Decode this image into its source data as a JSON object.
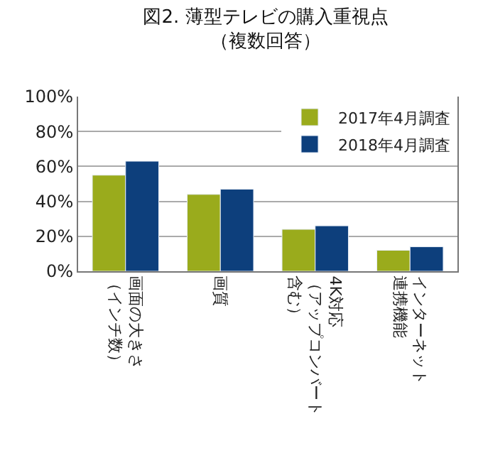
{
  "chart_data": {
    "type": "bar",
    "title": "図2. 薄型テレビの購入重視点（複数回答）",
    "categories": [
      "画面の大きさ（インチ数）",
      "画質",
      "4K対応（アップコンバート含む）",
      "インターネット連携機能"
    ],
    "series": [
      {
        "name": "2017年4月調査",
        "color": "#9aab1c",
        "values": [
          55,
          44,
          24,
          12
        ]
      },
      {
        "name": "2018年4月調査",
        "color": "#0d3f7c",
        "values": [
          63,
          47,
          26,
          14
        ]
      }
    ],
    "ylim": [
      0,
      100
    ],
    "yticks": [
      {
        "value": 0,
        "label": "0%"
      },
      {
        "value": 20,
        "label": "20%"
      },
      {
        "value": 40,
        "label": "40%"
      },
      {
        "value": 60,
        "label": "60%"
      },
      {
        "value": 80,
        "label": "80%"
      },
      {
        "value": 100,
        "label": "100%"
      }
    ],
    "grid": "y",
    "legend": "top right"
  }
}
